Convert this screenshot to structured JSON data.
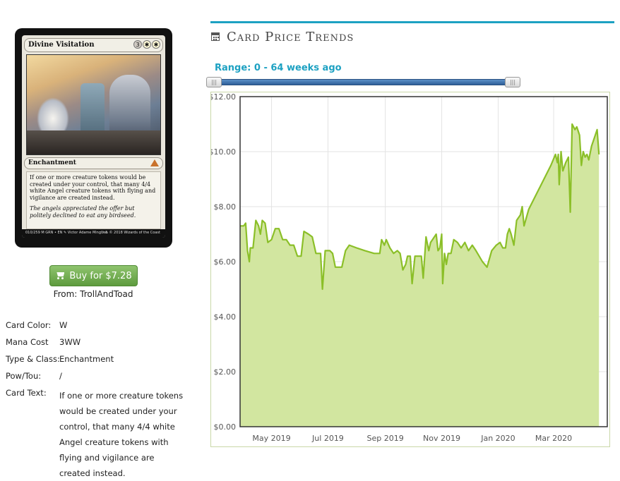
{
  "card": {
    "name": "Divine Visitation",
    "mana_symbols": [
      "3",
      "W",
      "W"
    ],
    "type_line": "Enchantment",
    "rules_text": "If one or more creature tokens would be created under your control, that many 4/4 white Angel creature tokens with flying and vigilance are created instead.",
    "flavor_text": "The angels appreciated the offer but politely declined to eat any birdseed.",
    "collector_left": "010/259 M GRN • EN ✎ Victor Adame Minguez",
    "collector_right": "™ & © 2018 Wizards of the Coast"
  },
  "buy": {
    "label": "Buy for $7.28",
    "icon": "cart-icon",
    "from": "From: TrollAndToad",
    "color": "#6aab48"
  },
  "details": [
    {
      "label": "Card Color:",
      "value": "W"
    },
    {
      "label": "Mana Cost",
      "value": "3WW"
    },
    {
      "label": "Type & Class:",
      "value": "Enchantment"
    },
    {
      "label": "Pow/Tou:",
      "value": "/"
    },
    {
      "label": "Card Text:",
      "value": "If one or more creature tokens would be created under your control, that many 4/4 white Angel creature tokens with flying and vigilance are created instead."
    }
  ],
  "panel": {
    "title": "Card Price Trends",
    "title_icon": "calendar-icon",
    "range_label": "Range: 0 - 64 weeks ago",
    "accent": "#1da1c2",
    "slider": {
      "min_weeks": 0,
      "max_weeks": 64,
      "low": 0,
      "high": 64
    }
  },
  "chart_data": {
    "type": "area",
    "title": "",
    "xlabel": "",
    "ylabel": "",
    "ylim": [
      0,
      12
    ],
    "y_ticks": [
      "$0.00",
      "$2.00",
      "$4.00",
      "$6.00",
      "$8.00",
      "$10.00",
      "$12.00"
    ],
    "x_ticks": [
      "May 2019",
      "Jul 2019",
      "Sep 2019",
      "Nov 2019",
      "Jan 2020",
      "Mar 2020"
    ],
    "x_tick_dates": [
      "2019-05-01",
      "2019-07-01",
      "2019-09-01",
      "2019-11-01",
      "2020-01-01",
      "2020-03-01"
    ],
    "xlim": [
      "2019-03-28",
      "2020-04-28"
    ],
    "grid": true,
    "line_color": "#8bbf28",
    "fill_color": "#d2e6a0",
    "series": [
      {
        "points": [
          [
            "2019-03-28",
            7.3
          ],
          [
            "2019-04-01",
            7.3
          ],
          [
            "2019-04-03",
            7.4
          ],
          [
            "2019-04-05",
            6.4
          ],
          [
            "2019-04-07",
            6.0
          ],
          [
            "2019-04-08",
            6.5
          ],
          [
            "2019-04-11",
            6.5
          ],
          [
            "2019-04-14",
            7.5
          ],
          [
            "2019-04-17",
            7.3
          ],
          [
            "2019-04-19",
            7.0
          ],
          [
            "2019-04-21",
            7.5
          ],
          [
            "2019-04-24",
            7.4
          ],
          [
            "2019-04-27",
            6.7
          ],
          [
            "2019-05-01",
            6.8
          ],
          [
            "2019-05-05",
            7.2
          ],
          [
            "2019-05-09",
            7.2
          ],
          [
            "2019-05-13",
            6.8
          ],
          [
            "2019-05-17",
            6.8
          ],
          [
            "2019-05-21",
            6.6
          ],
          [
            "2019-05-25",
            6.6
          ],
          [
            "2019-05-29",
            6.2
          ],
          [
            "2019-06-02",
            6.2
          ],
          [
            "2019-06-05",
            7.1
          ],
          [
            "2019-06-10",
            7.0
          ],
          [
            "2019-06-14",
            6.9
          ],
          [
            "2019-06-18",
            6.3
          ],
          [
            "2019-06-21",
            6.3
          ],
          [
            "2019-06-23",
            6.3
          ],
          [
            "2019-06-25",
            5.0
          ],
          [
            "2019-06-28",
            6.4
          ],
          [
            "2019-07-03",
            6.4
          ],
          [
            "2019-07-06",
            6.3
          ],
          [
            "2019-07-09",
            5.8
          ],
          [
            "2019-07-16",
            5.8
          ],
          [
            "2019-07-20",
            6.4
          ],
          [
            "2019-07-24",
            6.6
          ],
          [
            "2019-08-01",
            6.5
          ],
          [
            "2019-08-10",
            6.4
          ],
          [
            "2019-08-20",
            6.3
          ],
          [
            "2019-08-26",
            6.3
          ],
          [
            "2019-08-28",
            6.8
          ],
          [
            "2019-08-31",
            6.6
          ],
          [
            "2019-09-02",
            6.8
          ],
          [
            "2019-09-06",
            6.5
          ],
          [
            "2019-09-10",
            6.3
          ],
          [
            "2019-09-14",
            6.4
          ],
          [
            "2019-09-17",
            6.3
          ],
          [
            "2019-09-20",
            5.7
          ],
          [
            "2019-09-23",
            5.9
          ],
          [
            "2019-09-25",
            6.2
          ],
          [
            "2019-09-28",
            6.2
          ],
          [
            "2019-09-30",
            5.2
          ],
          [
            "2019-10-03",
            6.2
          ],
          [
            "2019-10-07",
            6.2
          ],
          [
            "2019-10-10",
            6.2
          ],
          [
            "2019-10-12",
            5.4
          ],
          [
            "2019-10-15",
            6.9
          ],
          [
            "2019-10-18",
            6.4
          ],
          [
            "2019-10-20",
            6.7
          ],
          [
            "2019-10-24",
            6.9
          ],
          [
            "2019-10-26",
            7.0
          ],
          [
            "2019-10-28",
            6.4
          ],
          [
            "2019-10-30",
            6.5
          ],
          [
            "2019-11-01",
            7.0
          ],
          [
            "2019-11-02",
            5.2
          ],
          [
            "2019-11-04",
            6.3
          ],
          [
            "2019-11-06",
            5.9
          ],
          [
            "2019-11-08",
            6.3
          ],
          [
            "2019-11-11",
            6.3
          ],
          [
            "2019-11-14",
            6.8
          ],
          [
            "2019-11-18",
            6.7
          ],
          [
            "2019-11-22",
            6.5
          ],
          [
            "2019-11-26",
            6.7
          ],
          [
            "2019-11-30",
            6.4
          ],
          [
            "2019-12-04",
            6.6
          ],
          [
            "2019-12-08",
            6.4
          ],
          [
            "2019-12-15",
            6.0
          ],
          [
            "2019-12-20",
            5.8
          ],
          [
            "2019-12-25",
            6.4
          ],
          [
            "2019-12-30",
            6.6
          ],
          [
            "2020-01-03",
            6.7
          ],
          [
            "2020-01-06",
            6.5
          ],
          [
            "2020-01-09",
            6.5
          ],
          [
            "2020-01-11",
            7.0
          ],
          [
            "2020-01-13",
            7.2
          ],
          [
            "2020-01-15",
            7.0
          ],
          [
            "2020-01-18",
            6.6
          ],
          [
            "2020-01-21",
            7.5
          ],
          [
            "2020-01-25",
            7.7
          ],
          [
            "2020-01-27",
            8.0
          ],
          [
            "2020-01-29",
            7.3
          ],
          [
            "2020-02-03",
            7.9
          ],
          [
            "2020-02-15",
            8.7
          ],
          [
            "2020-02-27",
            9.5
          ],
          [
            "2020-03-03",
            9.9
          ],
          [
            "2020-03-05",
            9.6
          ],
          [
            "2020-03-06",
            9.9
          ],
          [
            "2020-03-07",
            8.8
          ],
          [
            "2020-03-09",
            10.0
          ],
          [
            "2020-03-11",
            9.3
          ],
          [
            "2020-03-14",
            9.6
          ],
          [
            "2020-03-17",
            9.8
          ],
          [
            "2020-03-19",
            7.8
          ],
          [
            "2020-03-21",
            11.0
          ],
          [
            "2020-03-24",
            10.8
          ],
          [
            "2020-03-26",
            10.9
          ],
          [
            "2020-03-29",
            10.6
          ],
          [
            "2020-03-31",
            9.5
          ],
          [
            "2020-04-02",
            10.0
          ],
          [
            "2020-04-04",
            9.8
          ],
          [
            "2020-04-06",
            9.9
          ],
          [
            "2020-04-08",
            9.7
          ],
          [
            "2020-04-11",
            10.2
          ],
          [
            "2020-04-14",
            10.5
          ],
          [
            "2020-04-17",
            10.8
          ],
          [
            "2020-04-19",
            9.9
          ]
        ]
      }
    ]
  }
}
